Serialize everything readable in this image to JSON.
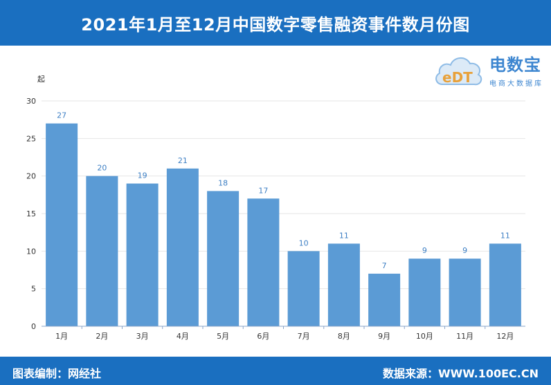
{
  "header": {
    "title": "2021年1月至12月中国数字零售融资事件数月份图"
  },
  "logo": {
    "mark": "eDT",
    "name": "电数宝",
    "sub": "电商大数据库"
  },
  "footer": {
    "left": "图表编制：网经社",
    "right": "数据来源：WWW.100EC.CN"
  },
  "colors": {
    "header": "#1a6fc0",
    "bar": "#5b9bd5",
    "value_label": "#3d7fc4",
    "logo": "#3d86d0"
  },
  "chart_data": {
    "type": "bar",
    "title": "2021年1月至12月中国数字零售融资事件数月份图",
    "ylabel": "起",
    "xlabel": "",
    "categories": [
      "1月",
      "2月",
      "3月",
      "4月",
      "5月",
      "6月",
      "7月",
      "8月",
      "9月",
      "10月",
      "11月",
      "12月"
    ],
    "values": [
      27,
      20,
      19,
      21,
      18,
      17,
      10,
      11,
      7,
      9,
      9,
      11
    ],
    "ylim": [
      0,
      30
    ],
    "yticks": [
      0,
      5,
      10,
      15,
      20,
      25,
      30
    ],
    "grid": true,
    "legend": "none"
  }
}
